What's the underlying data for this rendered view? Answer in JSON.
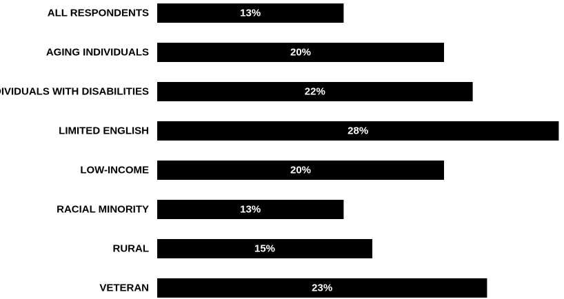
{
  "chart_data": {
    "type": "bar",
    "orientation": "horizontal",
    "categories": [
      "ALL RESPONDENTS",
      "AGING INDIVIDUALS",
      "INDIVIDUALS WITH DISABILITIES",
      "LIMITED ENGLISH",
      "LOW-INCOME",
      "RACIAL MINORITY",
      "RURAL",
      "VETERAN"
    ],
    "values": [
      13,
      20,
      22,
      28,
      20,
      13,
      15,
      23
    ],
    "value_labels": [
      "13%",
      "20%",
      "22%",
      "28%",
      "20%",
      "13%",
      "15%",
      "23%"
    ],
    "bar_color": "#000000",
    "value_label_color": "#ffffff",
    "category_label_color": "#000000",
    "grid": false,
    "legend": "none"
  }
}
